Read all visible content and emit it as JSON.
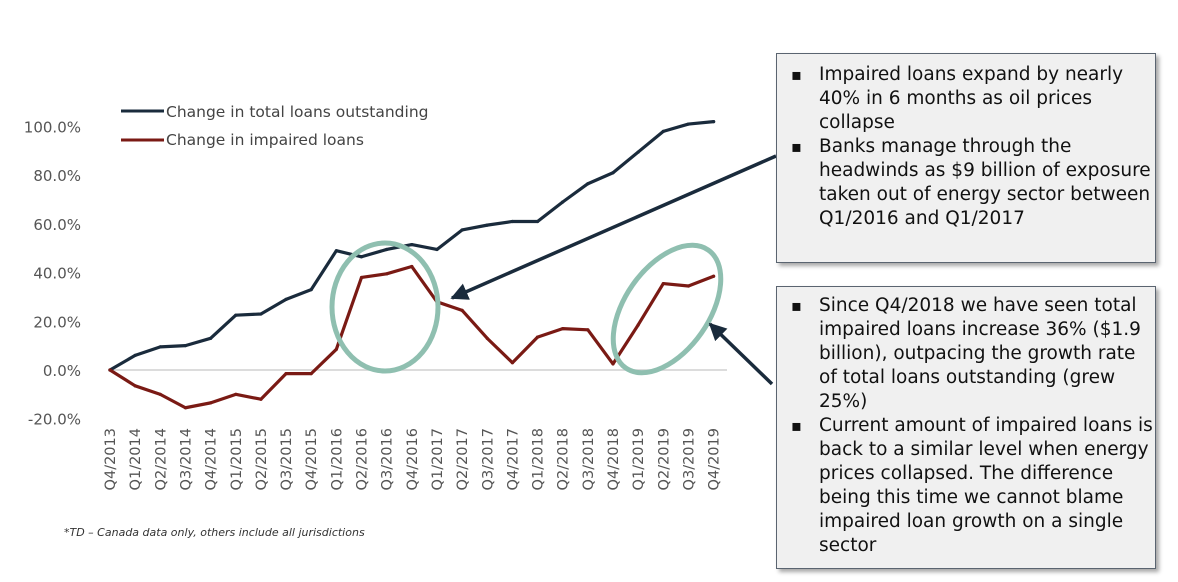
{
  "chart_data": {
    "type": "line",
    "categories": [
      "Q4/2013",
      "Q1/2014",
      "Q2/2014",
      "Q3/2014",
      "Q4/2014",
      "Q1/2015",
      "Q2/2015",
      "Q3/2015",
      "Q4/2015",
      "Q1/2016",
      "Q2/2016",
      "Q3/2016",
      "Q4/2016",
      "Q1/2017",
      "Q2/2017",
      "Q3/2017",
      "Q4/2017",
      "Q1/2018",
      "Q2/2018",
      "Q3/2018",
      "Q4/2018",
      "Q1/2019",
      "Q2/2019",
      "Q3/2019",
      "Q4/2019"
    ],
    "series": [
      {
        "name": "Change in total loans outstanding",
        "color": "#1a2b3c",
        "values": [
          0,
          6,
          9.5,
          10,
          13,
          22.5,
          23,
          29,
          33,
          49,
          46.5,
          49.5,
          51.5,
          49.5,
          57.5,
          59.5,
          61,
          61,
          69,
          76.5,
          81,
          89.5,
          98,
          101,
          102
        ]
      },
      {
        "name": "Change in impaired loans",
        "color": "#7a1a14",
        "values": [
          0,
          -6.5,
          -10,
          -15.5,
          -13.5,
          -10,
          -12,
          -1.5,
          -1.5,
          8.5,
          38,
          39.5,
          42.5,
          28,
          24.5,
          13,
          3,
          13.5,
          17,
          16.5,
          2.5,
          18.5,
          35.5,
          34.5,
          38.5
        ]
      }
    ],
    "y_ticks": [
      "100.0%",
      "80.0%",
      "60.0%",
      "40.0%",
      "20.0%",
      "0.0%",
      "-20.0%"
    ],
    "y_tick_values": [
      100,
      80,
      60,
      40,
      20,
      0,
      -20
    ],
    "ylim": [
      -20,
      100
    ],
    "title": "",
    "xlabel": "",
    "ylabel": "",
    "legend_position": "top-left",
    "annotations": [
      "circle around Q2/2016–Q4/2016 impaired loans peak",
      "circle around Q4/2018–Q4/2019 impaired loans rise"
    ]
  },
  "footnote": "*TD – Canada data only, others include all jurisdictions",
  "callouts": {
    "top": [
      "Impaired loans expand by nearly 40% in 6 months as oil prices collapse",
      "Banks manage through the headwinds as $9 billion of exposure taken out of energy sector between Q1/2016 and Q1/2017"
    ],
    "bottom": [
      "Since Q4/2018 we have seen total impaired loans increase 36% ($1.9 billion), outpacing the growth rate of total loans outstanding (grew 25%)",
      "Current amount of impaired loans is back to a similar level when energy prices collapsed. The difference being this time we cannot blame impaired loan growth on a single sector"
    ]
  },
  "colors": {
    "circle": "#8fbfb0",
    "arrow": "#1a2b3c",
    "zero_line": "#d0d0d0",
    "axis_text": "#555555"
  }
}
